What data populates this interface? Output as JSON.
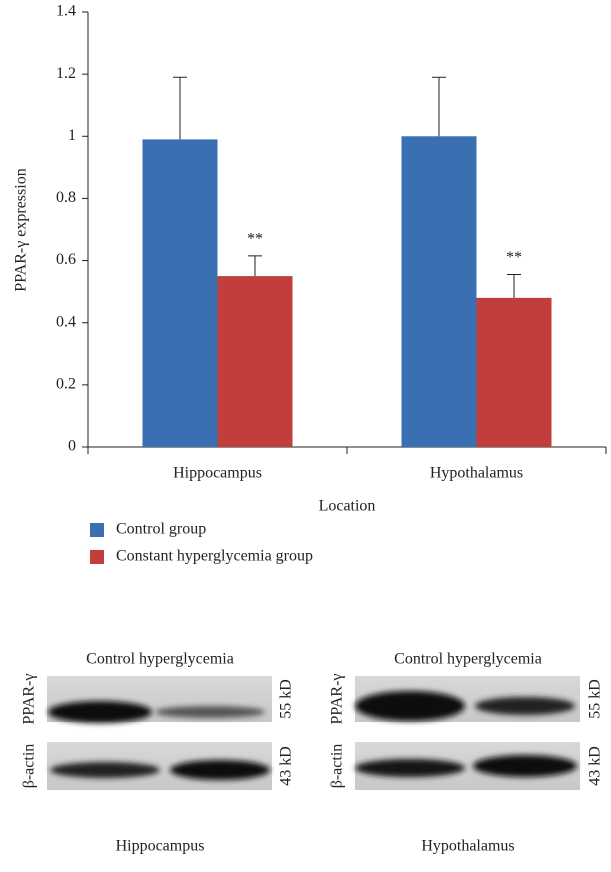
{
  "chart_data": {
    "type": "bar",
    "ylabel": "PPAR-γ expression",
    "xlabel": "Location",
    "categories": [
      "Hippocampus",
      "Hypothalamus"
    ],
    "series": [
      {
        "name": "Control group",
        "color": "#3a6fb2",
        "values": [
          0.99,
          1.0
        ],
        "errors": [
          0.2,
          0.19
        ]
      },
      {
        "name": "Constant hyperglycemia group",
        "color": "#c13e3c",
        "values": [
          0.55,
          0.48
        ],
        "errors": [
          0.065,
          0.075
        ]
      }
    ],
    "annotations": [
      "**",
      "**"
    ],
    "ylim": [
      0,
      1.4
    ],
    "yticks": [
      0,
      0.2,
      0.4,
      0.6,
      0.8,
      1,
      1.2,
      1.4
    ]
  },
  "blots": [
    {
      "header": "Control hyperglycemia",
      "rows": [
        {
          "label": "PPAR-γ",
          "size": "55 kD"
        },
        {
          "label": "β-actin",
          "size": "43 kD"
        }
      ],
      "caption": "Hippocampus"
    },
    {
      "header": "Control hyperglycemia",
      "rows": [
        {
          "label": "PPAR-γ",
          "size": "55 kD"
        },
        {
          "label": "β-actin",
          "size": "43 kD"
        }
      ],
      "caption": "Hypothalamus"
    }
  ]
}
